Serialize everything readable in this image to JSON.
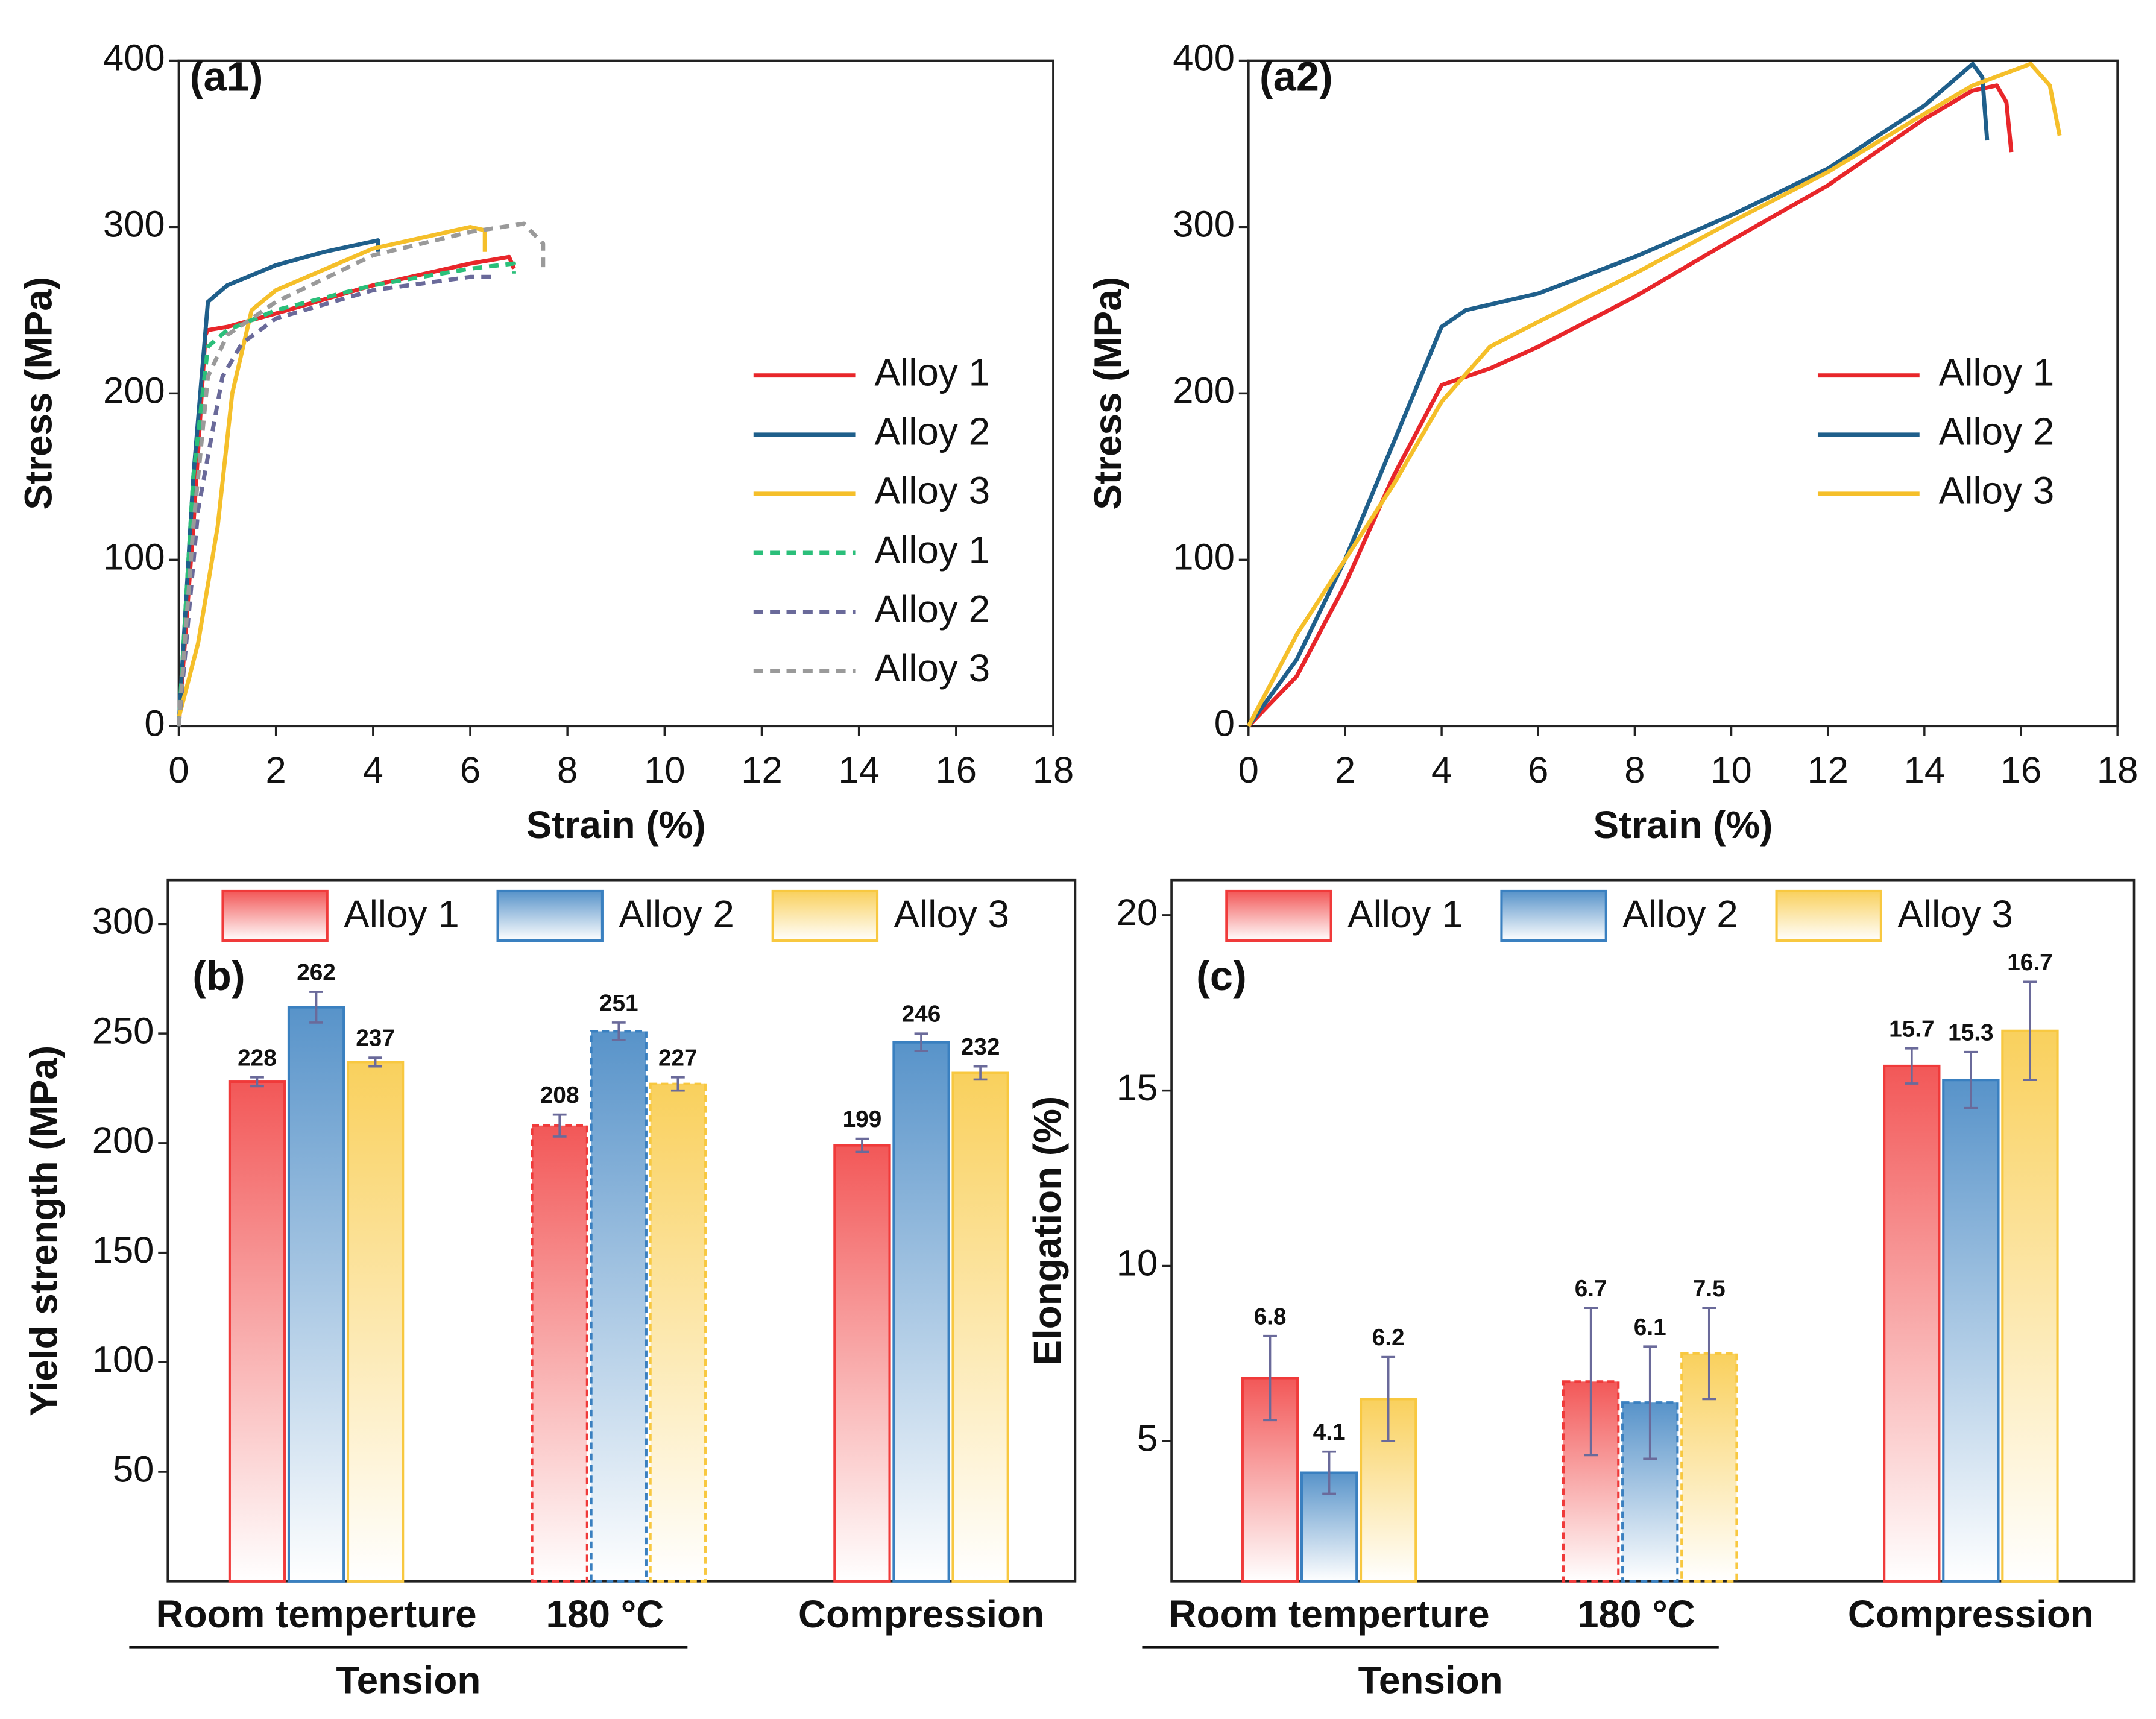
{
  "chart_data": [
    {
      "type": "line",
      "label": "(a1)",
      "xlabel": "Strain (%)",
      "ylabel": "Stress (MPa)",
      "xlim": [
        0,
        18
      ],
      "xticks": [
        0,
        2,
        4,
        6,
        8,
        10,
        12,
        14,
        16,
        18
      ],
      "ylim": [
        0,
        400
      ],
      "yticks": [
        0,
        100,
        200,
        300,
        400
      ],
      "legend": "right",
      "series": [
        {
          "name": "Alloy 1",
          "color": "#e8262a",
          "dashed": false,
          "x": [
            0,
            0.3,
            0.55,
            0.6,
            1,
            2,
            4,
            6,
            6.8,
            6.9
          ],
          "values": [
            0,
            120,
            235,
            238,
            240,
            248,
            265,
            278,
            282,
            275
          ]
        },
        {
          "name": "Alloy 2",
          "color": "#1f5f8b",
          "dashed": false,
          "x": [
            0,
            0.3,
            0.6,
            1,
            2,
            3,
            4.1,
            4.1
          ],
          "values": [
            0,
            150,
            255,
            265,
            277,
            285,
            292,
            285
          ]
        },
        {
          "name": "Alloy 3",
          "color": "#f5bf2a",
          "dashed": false,
          "x": [
            0,
            0.4,
            0.8,
            1.1,
            1.5,
            2,
            4,
            6,
            6.3,
            6.3
          ],
          "values": [
            5,
            50,
            120,
            200,
            250,
            262,
            287,
            300,
            298,
            285
          ]
        },
        {
          "name": "Alloy 1",
          "color": "#2bbf7a",
          "dashed": true,
          "x": [
            0,
            0.3,
            0.6,
            1,
            2,
            4,
            6,
            6.9,
            6.9
          ],
          "values": [
            0,
            150,
            228,
            238,
            250,
            265,
            275,
            278,
            272
          ]
        },
        {
          "name": "Alloy 2",
          "color": "#6a6a9a",
          "dashed": true,
          "x": [
            0,
            0.4,
            0.9,
            1.3,
            2,
            4,
            6,
            6.5
          ],
          "values": [
            0,
            130,
            210,
            230,
            245,
            262,
            270,
            270
          ]
        },
        {
          "name": "Alloy 3",
          "color": "#9a9a9a",
          "dashed": true,
          "x": [
            0,
            0.3,
            0.6,
            1,
            2,
            4,
            6,
            7.1,
            7.5,
            7.5
          ],
          "values": [
            0,
            120,
            210,
            235,
            255,
            283,
            297,
            302,
            290,
            275
          ]
        }
      ]
    },
    {
      "type": "line",
      "label": "(a2)",
      "xlabel": "Strain (%)",
      "ylabel": "Stress (MPa)",
      "xlim": [
        0,
        18
      ],
      "xticks": [
        0,
        2,
        4,
        6,
        8,
        10,
        12,
        14,
        16,
        18
      ],
      "ylim": [
        0,
        400
      ],
      "yticks": [
        0,
        100,
        200,
        300,
        400
      ],
      "legend": "right",
      "series": [
        {
          "name": "Alloy 1",
          "color": "#e8262a",
          "dashed": false,
          "x": [
            0,
            1,
            2,
            3,
            4,
            5,
            6,
            8,
            10,
            12,
            14,
            15,
            15.5,
            15.7,
            15.8
          ],
          "values": [
            0,
            30,
            85,
            150,
            205,
            215,
            228,
            258,
            292,
            325,
            365,
            382,
            385,
            375,
            345
          ]
        },
        {
          "name": "Alloy 2",
          "color": "#1f5f8b",
          "dashed": false,
          "x": [
            0,
            1,
            2,
            3,
            4,
            4.5,
            6,
            8,
            10,
            12,
            14,
            15,
            15.2,
            15.3
          ],
          "values": [
            0,
            40,
            100,
            170,
            240,
            250,
            260,
            282,
            307,
            335,
            373,
            398,
            390,
            352
          ]
        },
        {
          "name": "Alloy 3",
          "color": "#f5bf2a",
          "dashed": false,
          "x": [
            0,
            1,
            2,
            3,
            4,
            5,
            6,
            8,
            10,
            12,
            14,
            15,
            16.2,
            16.6,
            16.8
          ],
          "values": [
            0,
            55,
            100,
            145,
            195,
            228,
            243,
            272,
            303,
            333,
            368,
            385,
            398,
            385,
            355
          ]
        }
      ]
    },
    {
      "type": "bar",
      "label": "(b)",
      "ylabel": "Yield strength (MPa)",
      "categories": [
        "Room temperture",
        "180 °C",
        "Compression"
      ],
      "group_label": "Tension",
      "dashed": [
        false,
        true,
        false
      ],
      "ylim": [
        0,
        320
      ],
      "yticks": [
        50,
        100,
        150,
        200,
        250,
        300
      ],
      "legend": "top",
      "series": [
        {
          "name": "Alloy 1",
          "color": "#f03a3a",
          "values": [
            228,
            208,
            199
          ],
          "errors": [
            2,
            5,
            3
          ]
        },
        {
          "name": "Alloy 2",
          "color": "#3a80c0",
          "values": [
            262,
            251,
            246
          ],
          "errors": [
            7,
            4,
            4
          ]
        },
        {
          "name": "Alloy 3",
          "color": "#f8c840",
          "values": [
            237,
            227,
            232
          ],
          "errors": [
            2,
            3,
            3
          ]
        }
      ]
    },
    {
      "type": "bar",
      "label": "(c)",
      "ylabel": "Elongation (%)",
      "categories": [
        "Room temperture",
        "180 °C",
        "Compression"
      ],
      "group_label": "Tension",
      "dashed": [
        false,
        true,
        false
      ],
      "ylim": [
        1,
        21
      ],
      "yticks": [
        5,
        10,
        15,
        20
      ],
      "legend": "top",
      "series": [
        {
          "name": "Alloy 1",
          "color": "#f03a3a",
          "values": [
            6.8,
            6.7,
            15.7
          ],
          "errors": [
            1.2,
            2.1,
            0.5
          ]
        },
        {
          "name": "Alloy 2",
          "color": "#3a80c0",
          "values": [
            4.1,
            6.1,
            15.3
          ],
          "errors": [
            0.6,
            1.6,
            0.8
          ]
        },
        {
          "name": "Alloy 3",
          "color": "#f8c840",
          "values": [
            6.2,
            7.5,
            16.7
          ],
          "errors": [
            1.2,
            1.3,
            1.4
          ]
        }
      ]
    }
  ]
}
